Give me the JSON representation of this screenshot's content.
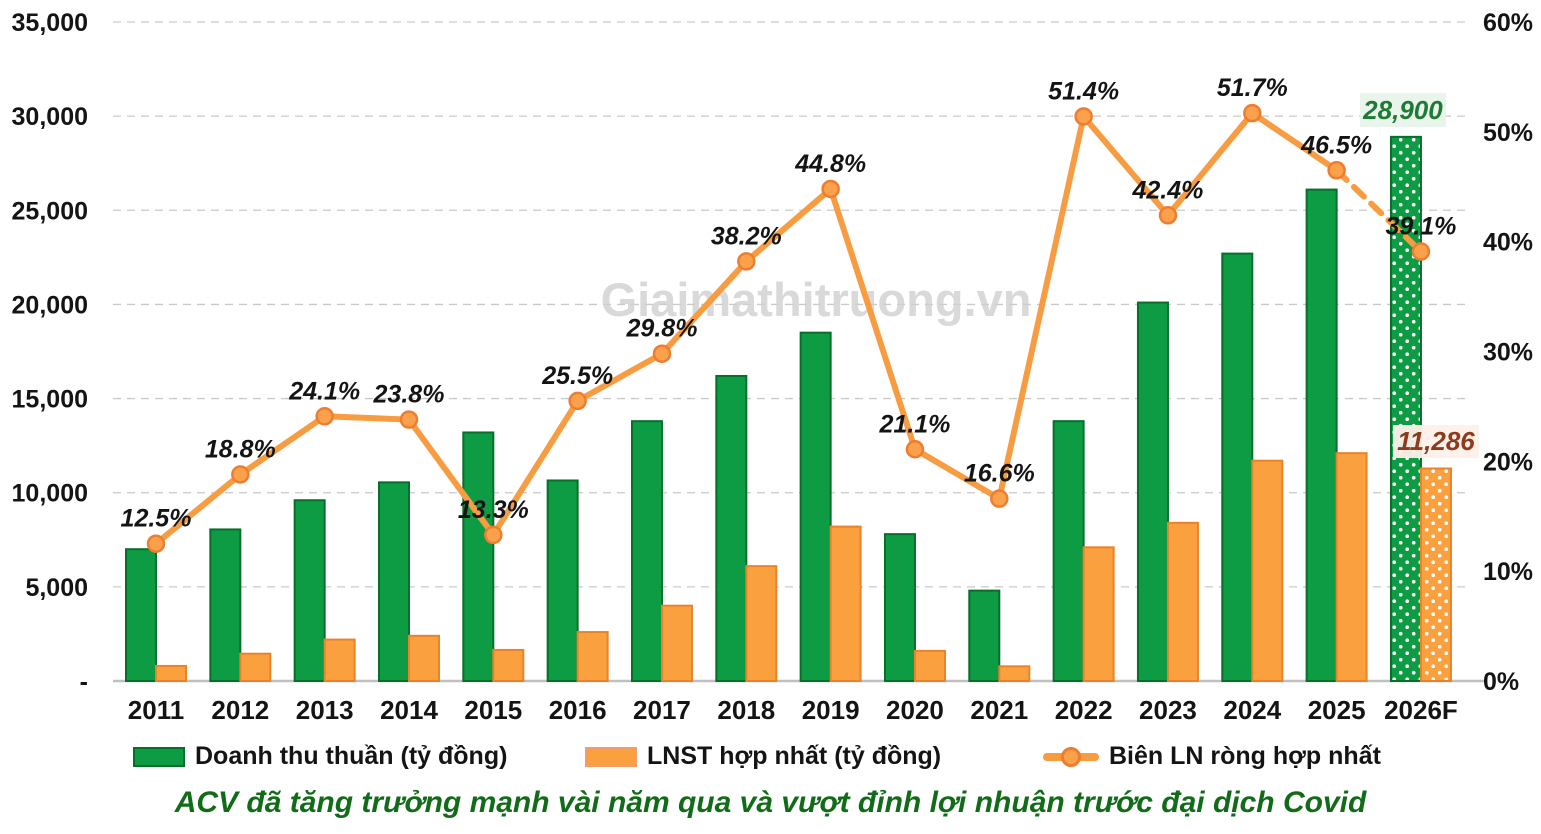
{
  "watermark": "Giaimathitruong.vn",
  "caption": "ACV đã tăng trưởng mạnh vài năm qua và vượt đỉnh lợi nhuận trước đại dịch Covid",
  "colors": {
    "bar_revenue_fill": "#0d9b43",
    "bar_revenue_border": "#076f2b",
    "bar_profit_fill": "#fba03f",
    "bar_profit_border": "#e8832c",
    "margin_line": "#f89c42",
    "marker_fill": "#fba14c",
    "marker_stroke": "#ed7d31",
    "gridline": "#c9c9c9",
    "baseline": "#c0c0c0",
    "axis_text": "#141414",
    "annotation_revenue_text": "#1e7a34",
    "annotation_revenue_bg": "#e8f4e9",
    "annotation_profit_text": "#8e3b1d",
    "annotation_profit_bg": "#fcf0ea",
    "caption_text": "#126b18",
    "watermark_text": "#d0d0d0"
  },
  "chart_data": {
    "type": "bar+line combo",
    "title": "",
    "categories": [
      "2011",
      "2012",
      "2013",
      "2014",
      "2015",
      "2016",
      "2017",
      "2018",
      "2019",
      "2020",
      "2021",
      "2022",
      "2023",
      "2024",
      "2025",
      "2026F"
    ],
    "series": [
      {
        "name": "Doanh thu thuần (tỷ đồng)",
        "type": "bar",
        "axis": "left",
        "values": [
          7000,
          8050,
          9600,
          10550,
          13200,
          10650,
          13800,
          16200,
          18500,
          7800,
          4800,
          13800,
          20100,
          22700,
          26100,
          28900
        ],
        "forecast_last_point": true
      },
      {
        "name": "LNST hợp nhất (tỷ đồng)",
        "type": "bar",
        "axis": "left",
        "values": [
          800,
          1450,
          2200,
          2400,
          1650,
          2600,
          4000,
          6100,
          8200,
          1600,
          780,
          7100,
          8400,
          11700,
          12100,
          11286
        ],
        "forecast_last_point": true
      },
      {
        "name": "Biên LN ròng hợp nhất",
        "type": "line",
        "axis": "right",
        "values": [
          12.5,
          18.8,
          24.1,
          23.8,
          13.3,
          25.5,
          29.8,
          38.2,
          44.8,
          21.1,
          16.6,
          51.4,
          42.4,
          51.7,
          46.5,
          39.1
        ],
        "dashed_last_segment": true
      }
    ],
    "point_labels": [
      "12.5%",
      "18.8%",
      "24.1%",
      "23.8%",
      "13.3%",
      "25.5%",
      "29.8%",
      "38.2%",
      "44.8%",
      "21.1%",
      "16.6%",
      "51.4%",
      "42.4%",
      "51.7%",
      "46.5%",
      "39.1%"
    ],
    "bar_annotations": [
      {
        "category": "2026F",
        "series": 0,
        "text": "28,900"
      },
      {
        "category": "2026F",
        "series": 1,
        "text": "11,286"
      }
    ],
    "left_axis": {
      "min": 0,
      "max": 35000,
      "tick_labels": [
        "35,000",
        "30,000",
        "25,000",
        "20,000",
        "15,000",
        "10,000",
        "5,000",
        "-"
      ],
      "tick_values": [
        35000,
        30000,
        25000,
        20000,
        15000,
        10000,
        5000,
        0
      ]
    },
    "right_axis": {
      "min": 0,
      "max": 60,
      "tick_labels": [
        "60%",
        "50%",
        "40%",
        "30%",
        "20%",
        "10%",
        "0%"
      ],
      "tick_values": [
        60,
        50,
        40,
        30,
        20,
        10,
        0
      ]
    },
    "grid": "horizontal dashed",
    "legend_position": "bottom"
  },
  "legend": [
    {
      "label": "Doanh thu thuần (tỷ đồng)",
      "symbol": "green-rect"
    },
    {
      "label": "LNST hợp nhất (tỷ đồng)",
      "symbol": "orange-rect"
    },
    {
      "label": "Biên LN ròng hợp nhất",
      "symbol": "orange-line-marker"
    }
  ]
}
